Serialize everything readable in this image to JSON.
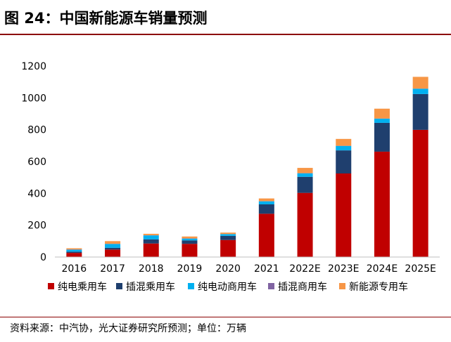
{
  "title": "图 24：中国新能源车销量预测",
  "source": "资料来源：中汽协，光大证券研究所预测；单位：万辆",
  "chart_data": {
    "type": "bar",
    "stacked": true,
    "categories": [
      "2016",
      "2017",
      "2018",
      "2019",
      "2020",
      "2021",
      "2022E",
      "2023E",
      "2024E",
      "2025E"
    ],
    "series": [
      {
        "name": "纯电乘用车",
        "color": "#c00000",
        "values": [
          26,
          47,
          85,
          83,
          107,
          272,
          403,
          525,
          662,
          799
        ]
      },
      {
        "name": "插混乘用车",
        "color": "#1f3f6e",
        "values": [
          8,
          11,
          26,
          21,
          26,
          59,
          101,
          145,
          181,
          225
        ]
      },
      {
        "name": "纯电动商用车",
        "color": "#00b0f0",
        "values": [
          12,
          24,
          25,
          12,
          11,
          19,
          22,
          28,
          26,
          33
        ]
      },
      {
        "name": "插混商用车",
        "color": "#8064a2",
        "values": [
          2,
          1,
          1,
          1,
          0.5,
          1,
          1,
          1,
          1,
          1
        ]
      },
      {
        "name": "新能源专用车",
        "color": "#f79646",
        "values": [
          7,
          17,
          9,
          12,
          9,
          17,
          33,
          43,
          62,
          74
        ]
      }
    ],
    "ylim": [
      0,
      1200
    ],
    "yticks": [
      0,
      200,
      400,
      600,
      800,
      1000,
      1200
    ],
    "grid": false,
    "legend_position": "bottom"
  }
}
